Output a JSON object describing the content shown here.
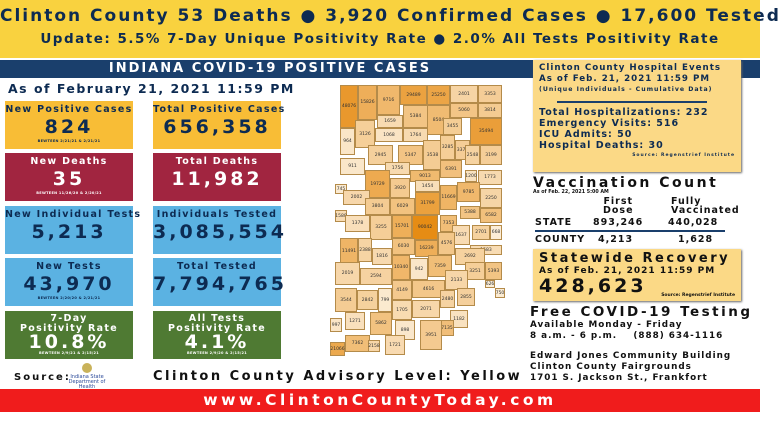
{
  "header": {
    "line1": "Clinton County  53 Deaths  ● 3,920 Confirmed Cases   ● 17,600 Tested",
    "line2": "Update: 5.5% 7-Day Unique Positivity Rate  ● 2.0% All Tests Positivity Rate"
  },
  "band_title": "INDIANA COVID-19 POSITIVE CASES",
  "as_of": "As of February 21, 2021 11:59 PM",
  "stats": [
    {
      "title": "New Positive Cases",
      "value": "824",
      "sub": "BEWTEEN 2/21/21 & 2/21/21",
      "color": "yellow"
    },
    {
      "title": "Total Positive Cases",
      "value": "656,358",
      "sub": "",
      "color": "yellow"
    },
    {
      "title": "New Deaths",
      "value": "35",
      "sub": "BEWTEEN 11/26/20 & 2/20/21",
      "color": "red"
    },
    {
      "title": "Total Deaths",
      "value": "11,982",
      "sub": "",
      "color": "red"
    },
    {
      "title": "New Individual Tests",
      "value": "5,213",
      "sub": "",
      "color": "blue"
    },
    {
      "title": "Individuals Tested",
      "value": "3,085,554",
      "sub": "",
      "color": "blue"
    },
    {
      "title": "New Tests",
      "value": "43,970",
      "sub": "BEWTEEN 2/20/20 & 2/21/21",
      "color": "blue"
    },
    {
      "title": "Total Tested",
      "value": "7,794,765",
      "sub": "",
      "color": "blue"
    },
    {
      "title": "7-Day\nPositivity Rate",
      "value": "10.8%",
      "sub": "BEWTEEN 2/9/21 & 2/15/21",
      "color": "green"
    },
    {
      "title": "All Tests\nPositivity Rate",
      "value": "4.1%",
      "sub": "BEWTEEN 2/9/20 & 2/15/21",
      "color": "green"
    }
  ],
  "county_cases": [
    "48076",
    "15826",
    "9716",
    "29489",
    "25250",
    "2401",
    "3353",
    "1659",
    "5384",
    "8504",
    "5060",
    "3814",
    "3455",
    "35494",
    "964",
    "3126",
    "1068",
    "1764",
    "2945",
    "5347",
    "3538",
    "3285",
    "3376",
    "2548",
    "3199",
    "911",
    "1756",
    "9013",
    "6391",
    "1200",
    "1773",
    "19729",
    "3920",
    "1454",
    "745",
    "2002",
    "11669",
    "9785",
    "2250",
    "3804",
    "6029",
    "31799",
    "1580",
    "5388",
    "6582",
    "1378",
    "3255",
    "15701",
    "90042",
    "7353",
    "1637",
    "2701",
    "668",
    "11491",
    "2388",
    "1816",
    "6030",
    "16239",
    "4576",
    "1583",
    "10340",
    "942",
    "7359",
    "2692",
    "3251",
    "5393",
    "2133",
    "626",
    "2019",
    "2594",
    "4149",
    "4616",
    "750",
    "2480",
    "2855",
    "3544",
    "2842",
    "799",
    "1705",
    "2071",
    "1271",
    "5862",
    "898",
    "1182",
    "7135",
    "3951",
    "997",
    "7362",
    "2158",
    "1721",
    "21066"
  ],
  "hospital": {
    "title": "Clinton County Hospital Events",
    "as_of": "As of Feb. 21, 2021 11:59 PM",
    "note": "(Unique Individuals - Cumulative Data)",
    "lines": [
      "Total Hospitalizations: 232",
      "Emergency Visits: 516",
      "ICU Admits: 50",
      "Hospital Deaths: 30"
    ],
    "source": "Source: Regenstrief Institute"
  },
  "vaccination": {
    "title": "Vaccination Count",
    "as_of": "As of Feb. 22, 2021 5:00 AM",
    "col1": "First\nDose",
    "col2": "Fully\nVaccinated",
    "state_label": "STATE",
    "state_first": "893,246",
    "state_full": "440,028",
    "county_label": "COUNTY",
    "county_first": "4,213",
    "county_full": "1,628"
  },
  "recovery": {
    "title": "Statewide Recovery",
    "as_of": "As of Feb. 21, 2021 11:59 PM",
    "value": "428,623",
    "source": "Source: Regenstrief Institute"
  },
  "testing": {
    "title": "Free COVID-19 Testing",
    "line1": "Available Monday - Friday",
    "line2": "8 a.m. - 6 p.m.    (888) 634-1116",
    "line3": "Edward Jones Community Building",
    "line4": "Clinton County Fairgrounds",
    "line5": "1701 S. Jackson St., Frankfort"
  },
  "source_label": "Source:",
  "idoh_logo": "Indiana State Department of Health",
  "advisory": "Clinton County Advisory Level: Yellow",
  "website": "www.ClintonCountyToday.com"
}
